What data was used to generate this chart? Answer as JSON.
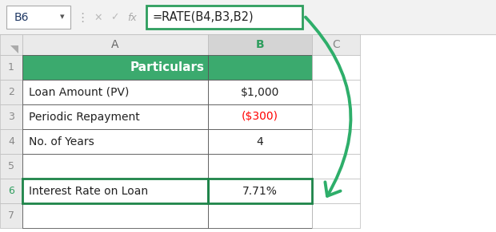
{
  "formula_bar_cell": "B6",
  "formula_text": "=RATE(B4,B3,B2)",
  "col_header_A": "A",
  "col_header_B": "B",
  "col_header_C": "C",
  "rows": [
    {
      "row": 1,
      "A": "Particulars",
      "B": "",
      "header": true
    },
    {
      "row": 2,
      "A": "Loan Amount (PV)",
      "B": "$1,000",
      "header": false,
      "B_color": "#222222"
    },
    {
      "row": 3,
      "A": "Periodic Repayment",
      "B": "($300)",
      "header": false,
      "B_color": "#FF0000"
    },
    {
      "row": 4,
      "A": "No. of Years",
      "B": "4",
      "header": false,
      "B_color": "#222222"
    },
    {
      "row": 5,
      "A": "",
      "B": "",
      "header": false,
      "B_color": "#222222"
    },
    {
      "row": 6,
      "A": "Interest Rate on Loan",
      "B": "7.71%",
      "header": false,
      "B_color": "#222222"
    },
    {
      "row": 7,
      "A": "",
      "B": "",
      "header": false,
      "B_color": "#222222"
    }
  ],
  "header_bg": "#3BAA6E",
  "header_text_color": "#FFFFFF",
  "grid_color": "#BBBBBB",
  "dark_grid_color": "#555555",
  "formula_box_border": "#2E9E5E",
  "arrow_color": "#2EAE6A",
  "bg_color": "#FFFFFF",
  "toolbar_bg": "#F2F2F2",
  "col_B_header_bg": "#D4D4D4",
  "row6_border_color": "#1E8449",
  "cell_name_box_border": "#AAAAAA",
  "row6_green_text_color": "#2E9E5E"
}
